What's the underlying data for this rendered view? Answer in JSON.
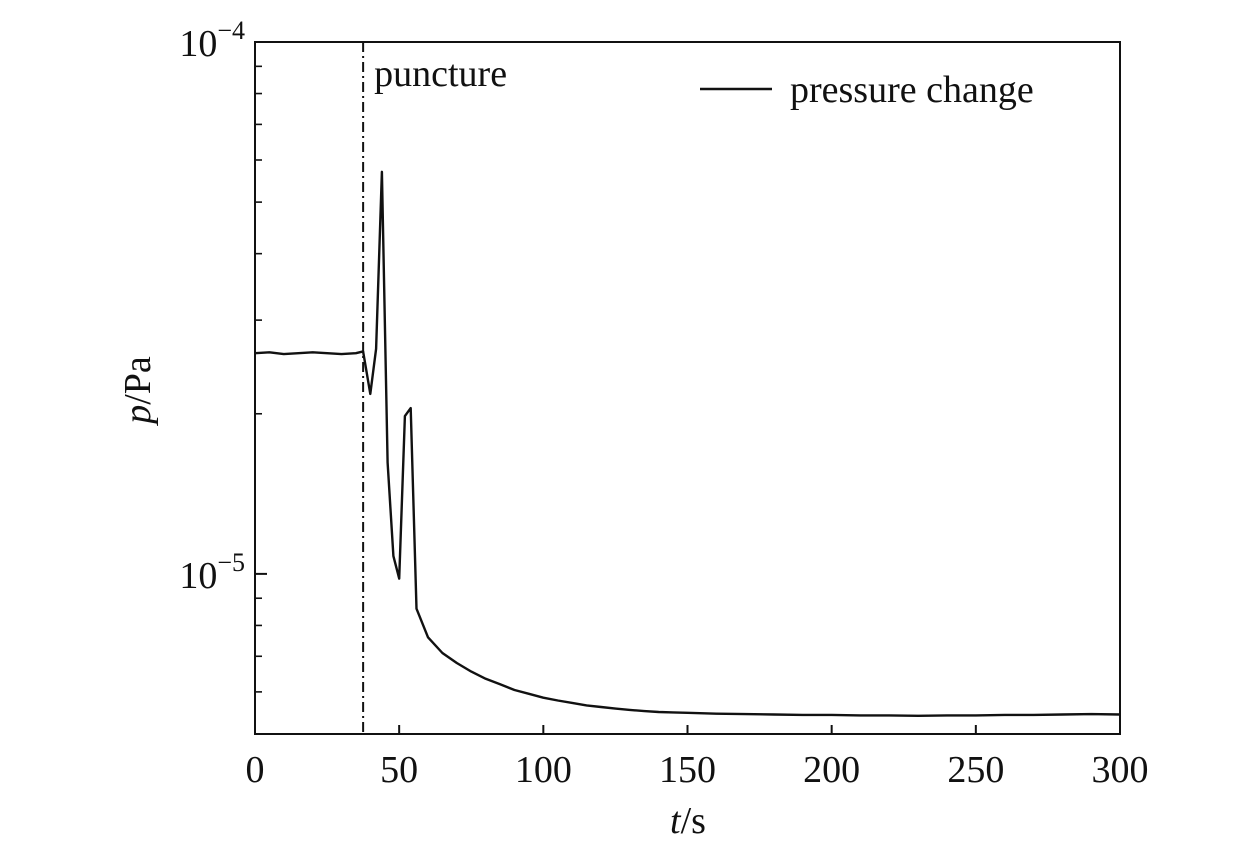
{
  "chart_data": {
    "type": "line",
    "title": "",
    "xlabel": {
      "var": "t",
      "unit": "/s"
    },
    "ylabel": {
      "var": "p",
      "unit": "/Pa"
    },
    "xlim": [
      0,
      300
    ],
    "ylim": [
      5e-06,
      0.0001
    ],
    "yscale": "log",
    "grid": false,
    "x_ticks": [
      0,
      50,
      100,
      150,
      200,
      250,
      300
    ],
    "x_tick_labels": [
      "0",
      "50",
      "100",
      "150",
      "200",
      "250",
      "300"
    ],
    "y_ticks": [
      1e-05,
      0.0001
    ],
    "y_tick_labels": [
      {
        "base": "10",
        "exp": "−5"
      },
      {
        "base": "10",
        "exp": "−4"
      }
    ],
    "legend": {
      "position": "top-right",
      "entries": [
        "pressure change"
      ]
    },
    "annotations": [
      {
        "type": "vline",
        "x": 37.5,
        "style": "dash-dot",
        "label": "puncture"
      }
    ],
    "series": [
      {
        "name": "pressure change",
        "color": "#111111",
        "x": [
          0,
          5,
          10,
          15,
          20,
          25,
          30,
          35,
          37.5,
          40,
          42,
          44,
          46,
          48,
          50,
          52,
          54,
          56,
          60,
          65,
          70,
          75,
          80,
          85,
          90,
          95,
          100,
          105,
          110,
          115,
          120,
          125,
          130,
          135,
          140,
          145,
          150,
          160,
          170,
          180,
          190,
          200,
          210,
          220,
          230,
          240,
          250,
          260,
          270,
          280,
          290,
          300
        ],
        "y": [
          2.6e-05,
          2.61e-05,
          2.59e-05,
          2.6e-05,
          2.61e-05,
          2.6e-05,
          2.59e-05,
          2.6e-05,
          2.62e-05,
          2.18e-05,
          2.65e-05,
          5.7e-05,
          1.62e-05,
          1.08e-05,
          9.8e-06,
          1.98e-05,
          2.05e-05,
          8.6e-06,
          7.6e-06,
          7.1e-06,
          6.8e-06,
          6.55e-06,
          6.35e-06,
          6.2e-06,
          6.05e-06,
          5.95e-06,
          5.85e-06,
          5.78e-06,
          5.72e-06,
          5.66e-06,
          5.62e-06,
          5.58e-06,
          5.55e-06,
          5.52e-06,
          5.5e-06,
          5.49e-06,
          5.48e-06,
          5.46e-06,
          5.45e-06,
          5.44e-06,
          5.43e-06,
          5.43e-06,
          5.42e-06,
          5.42e-06,
          5.41e-06,
          5.42e-06,
          5.42e-06,
          5.43e-06,
          5.43e-06,
          5.44e-06,
          5.45e-06,
          5.44e-06
        ]
      }
    ]
  }
}
